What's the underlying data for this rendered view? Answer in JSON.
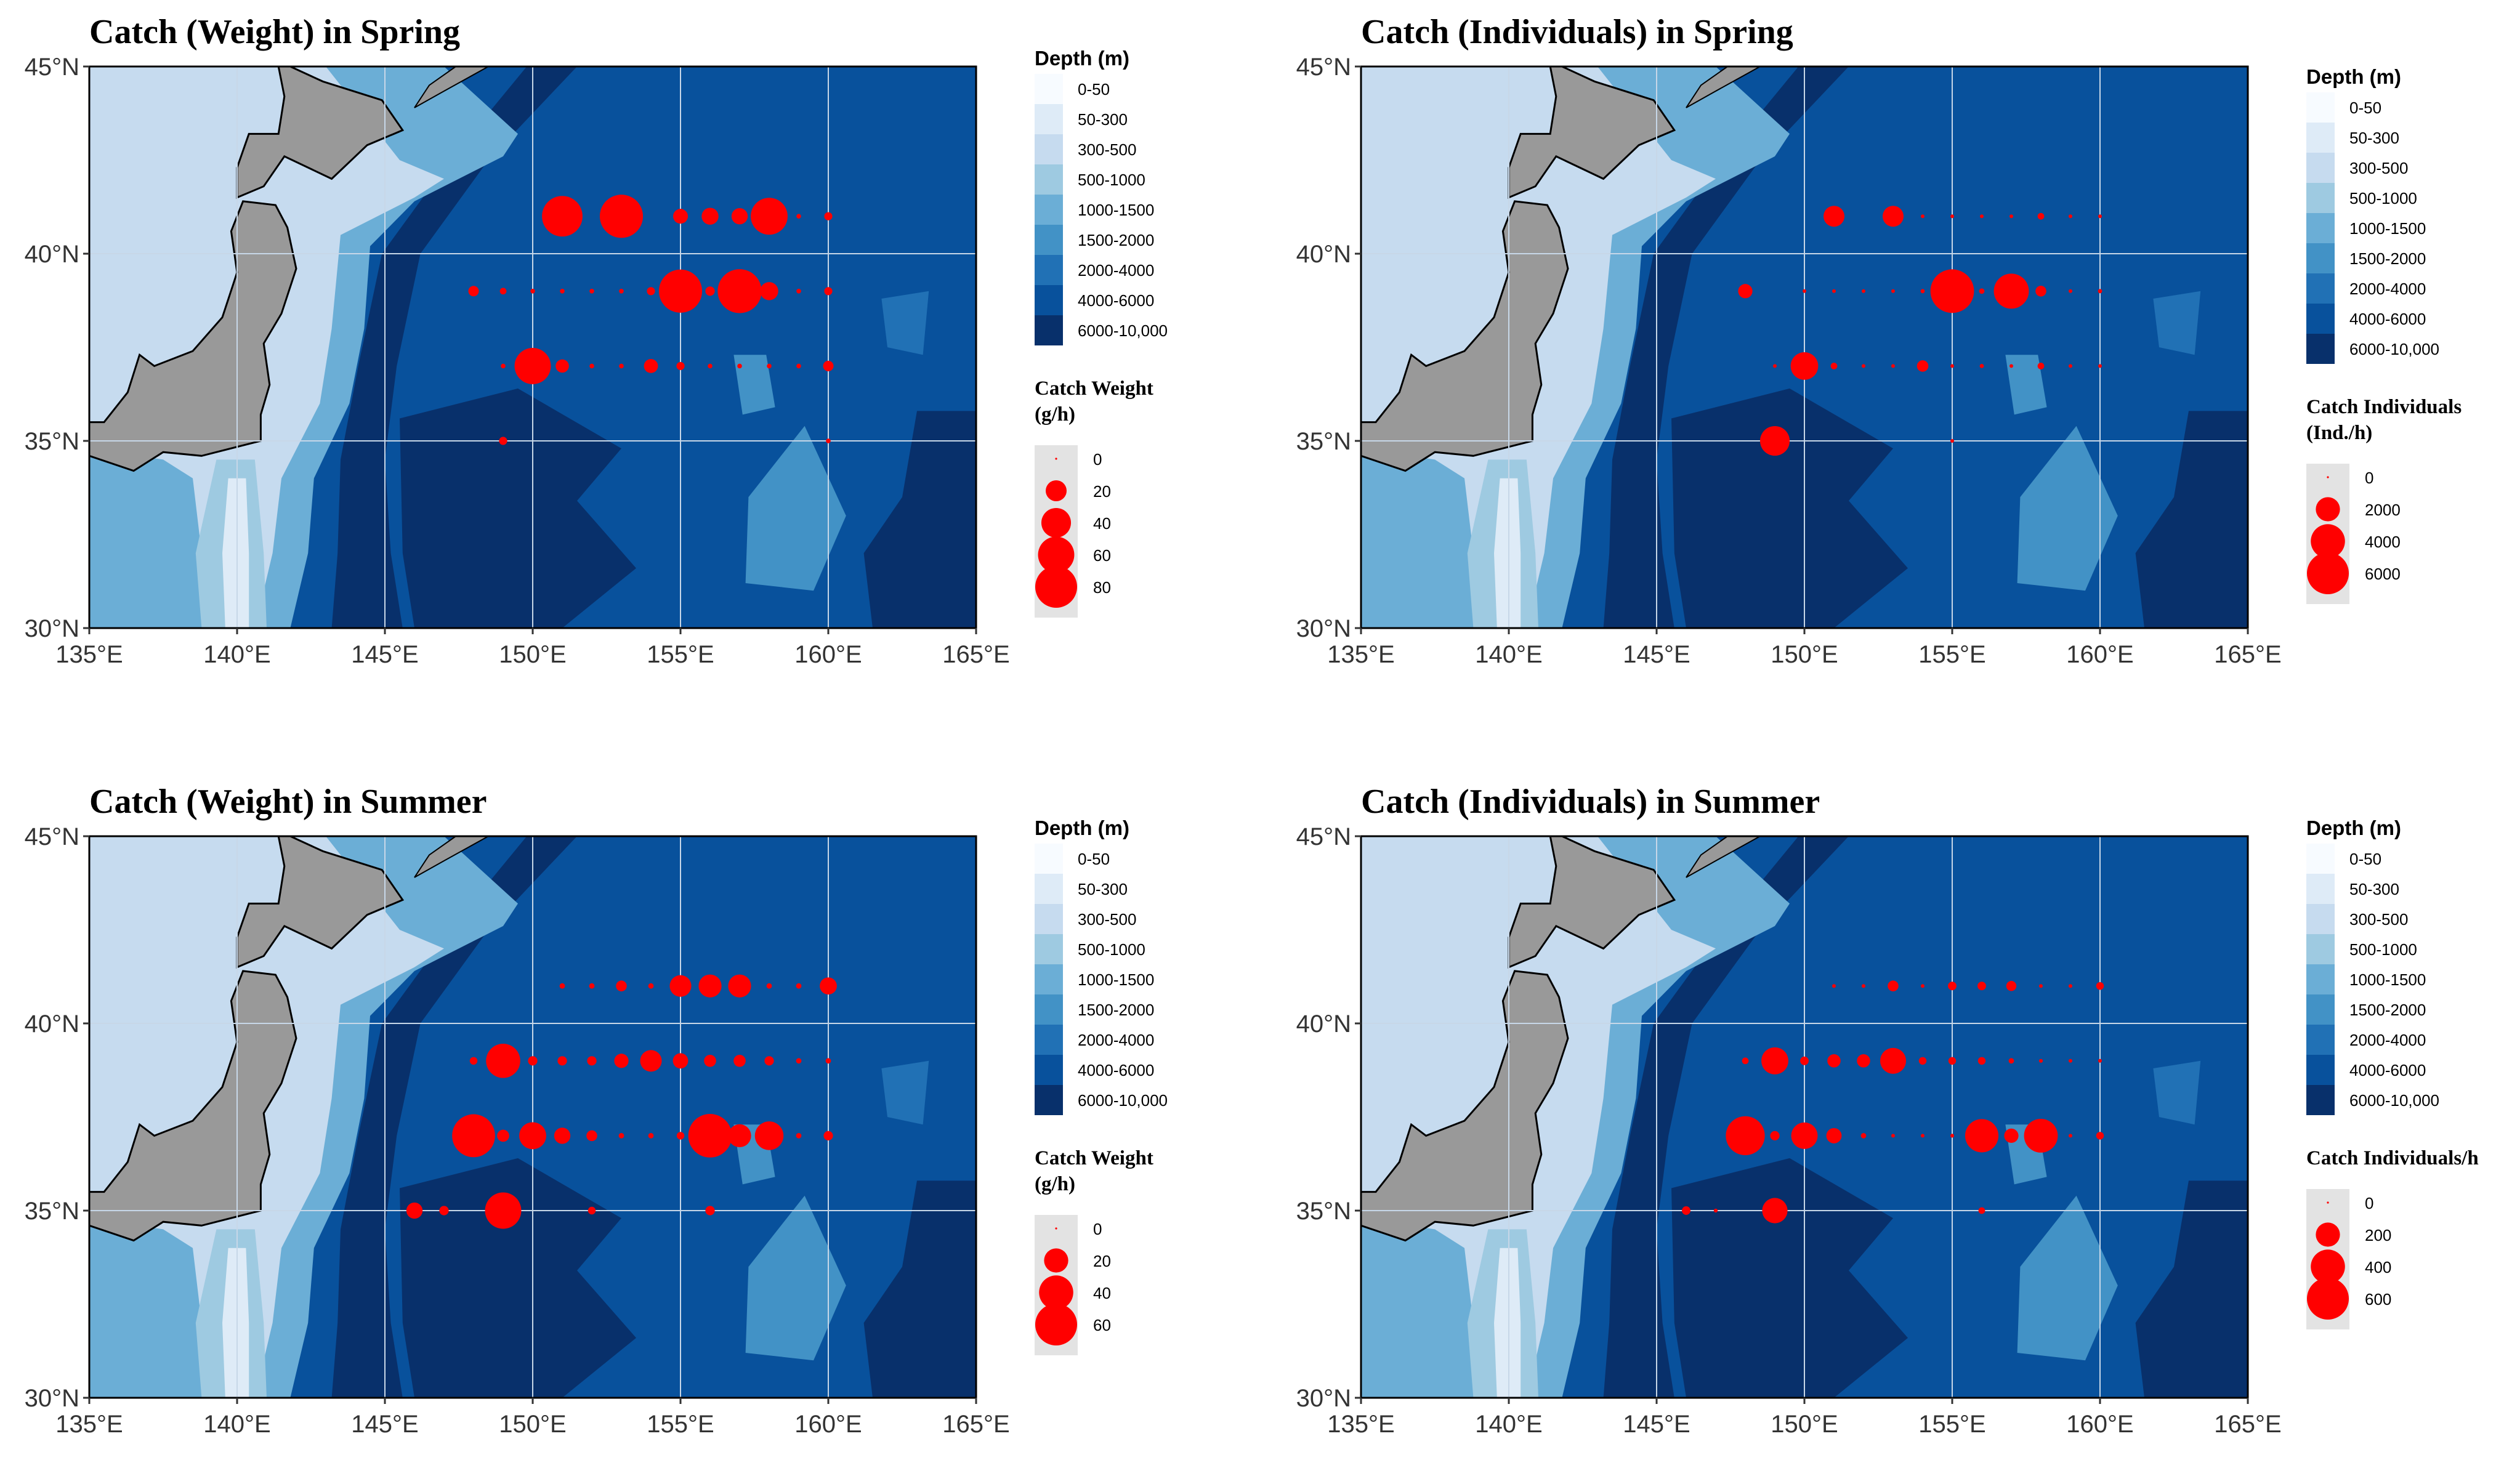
{
  "colors": {
    "depth": [
      "#f7fbff",
      "#deebf7",
      "#c6dbef",
      "#9ecae1",
      "#6baed6",
      "#4292c6",
      "#2171b5",
      "#08519c",
      "#08306b"
    ],
    "land": "#999999",
    "catch_point": "#ff0000",
    "legend_box": "#e3e3e3",
    "grid": "#c7d7e8"
  },
  "axes": {
    "x_ticks": [
      "135°E",
      "140°E",
      "145°E",
      "150°E",
      "155°E",
      "160°E",
      "165°E"
    ],
    "y_ticks": [
      "45°N",
      "40°N",
      "35°N",
      "30°N"
    ],
    "lon_range": [
      135,
      165
    ],
    "lat_range": [
      30,
      45
    ]
  },
  "depth_legend": {
    "title": "Depth (m)",
    "classes": [
      "0-50",
      "50-300",
      "300-500",
      "500-1000",
      "1000-1500",
      "1500-2000",
      "2000-4000",
      "4000-6000",
      "6000-10,000"
    ]
  },
  "panels": [
    {
      "title": "Catch (Weight) in Spring",
      "catch_legend": {
        "title_lines": [
          "Catch Weight",
          "(g/h)"
        ],
        "values": [
          0,
          20,
          40,
          60,
          80
        ],
        "labels": [
          "0",
          "20",
          "40",
          "60",
          "80"
        ]
      },
      "points": [
        {
          "lon": 151,
          "lat": 41,
          "v": 75
        },
        {
          "lon": 153,
          "lat": 41,
          "v": 85
        },
        {
          "lon": 155,
          "lat": 41,
          "v": 10
        },
        {
          "lon": 156,
          "lat": 41,
          "v": 13
        },
        {
          "lon": 157,
          "lat": 41,
          "v": 12
        },
        {
          "lon": 158,
          "lat": 41,
          "v": 62
        },
        {
          "lon": 159,
          "lat": 41,
          "v": 1
        },
        {
          "lon": 160,
          "lat": 41,
          "v": 3
        },
        {
          "lon": 148,
          "lat": 39,
          "v": 5
        },
        {
          "lon": 149,
          "lat": 39,
          "v": 2
        },
        {
          "lon": 150,
          "lat": 39,
          "v": 1
        },
        {
          "lon": 151,
          "lat": 39,
          "v": 1
        },
        {
          "lon": 152,
          "lat": 39,
          "v": 1
        },
        {
          "lon": 153,
          "lat": 39,
          "v": 1
        },
        {
          "lon": 154,
          "lat": 39,
          "v": 3
        },
        {
          "lon": 155,
          "lat": 39,
          "v": 85
        },
        {
          "lon": 156,
          "lat": 39,
          "v": 4
        },
        {
          "lon": 157,
          "lat": 39,
          "v": 88
        },
        {
          "lon": 158,
          "lat": 39,
          "v": 15
        },
        {
          "lon": 159,
          "lat": 39,
          "v": 1
        },
        {
          "lon": 160,
          "lat": 39,
          "v": 3
        },
        {
          "lon": 149,
          "lat": 37,
          "v": 1
        },
        {
          "lon": 150,
          "lat": 37,
          "v": 60
        },
        {
          "lon": 151,
          "lat": 37,
          "v": 8
        },
        {
          "lon": 152,
          "lat": 37,
          "v": 1
        },
        {
          "lon": 153,
          "lat": 37,
          "v": 1
        },
        {
          "lon": 154,
          "lat": 37,
          "v": 9
        },
        {
          "lon": 155,
          "lat": 37,
          "v": 3
        },
        {
          "lon": 156,
          "lat": 37,
          "v": 1
        },
        {
          "lon": 157,
          "lat": 37,
          "v": 1
        },
        {
          "lon": 158,
          "lat": 37,
          "v": 1
        },
        {
          "lon": 159,
          "lat": 37,
          "v": 1
        },
        {
          "lon": 160,
          "lat": 37,
          "v": 5
        },
        {
          "lon": 149,
          "lat": 35,
          "v": 3
        },
        {
          "lon": 160,
          "lat": 35,
          "v": 1
        }
      ]
    },
    {
      "title": "Catch (Individuals) in Spring",
      "catch_legend": {
        "title_lines": [
          "Catch Individuals",
          "(Ind./h)"
        ],
        "values": [
          0,
          2000,
          4000,
          6000
        ],
        "labels": [
          "0",
          "2000",
          "4000",
          "6000"
        ]
      },
      "points": [
        {
          "lon": 151,
          "lat": 41,
          "v": 1500
        },
        {
          "lon": 153,
          "lat": 41,
          "v": 1500
        },
        {
          "lon": 154,
          "lat": 41,
          "v": 30
        },
        {
          "lon": 155,
          "lat": 41,
          "v": 30
        },
        {
          "lon": 156,
          "lat": 41,
          "v": 30
        },
        {
          "lon": 157,
          "lat": 41,
          "v": 30
        },
        {
          "lon": 158,
          "lat": 41,
          "v": 150
        },
        {
          "lon": 159,
          "lat": 41,
          "v": 30
        },
        {
          "lon": 160,
          "lat": 41,
          "v": 30
        },
        {
          "lon": 148,
          "lat": 39,
          "v": 700
        },
        {
          "lon": 150,
          "lat": 39,
          "v": 30
        },
        {
          "lon": 151,
          "lat": 39,
          "v": 30
        },
        {
          "lon": 152,
          "lat": 39,
          "v": 30
        },
        {
          "lon": 153,
          "lat": 39,
          "v": 30
        },
        {
          "lon": 154,
          "lat": 39,
          "v": 60
        },
        {
          "lon": 155,
          "lat": 39,
          "v": 6500
        },
        {
          "lon": 156,
          "lat": 39,
          "v": 100
        },
        {
          "lon": 157,
          "lat": 39,
          "v": 4200
        },
        {
          "lon": 158,
          "lat": 39,
          "v": 400
        },
        {
          "lon": 159,
          "lat": 39,
          "v": 30
        },
        {
          "lon": 160,
          "lat": 39,
          "v": 60
        },
        {
          "lon": 149,
          "lat": 37,
          "v": 30
        },
        {
          "lon": 150,
          "lat": 37,
          "v": 2600
        },
        {
          "lon": 151,
          "lat": 37,
          "v": 150
        },
        {
          "lon": 152,
          "lat": 37,
          "v": 30
        },
        {
          "lon": 153,
          "lat": 37,
          "v": 30
        },
        {
          "lon": 154,
          "lat": 37,
          "v": 450
        },
        {
          "lon": 155,
          "lat": 37,
          "v": 30
        },
        {
          "lon": 156,
          "lat": 37,
          "v": 60
        },
        {
          "lon": 157,
          "lat": 37,
          "v": 30
        },
        {
          "lon": 158,
          "lat": 37,
          "v": 150
        },
        {
          "lon": 159,
          "lat": 37,
          "v": 30
        },
        {
          "lon": 160,
          "lat": 37,
          "v": 30
        },
        {
          "lon": 149,
          "lat": 35,
          "v": 3000
        },
        {
          "lon": 155,
          "lat": 35,
          "v": 30
        }
      ]
    },
    {
      "title": "Catch (Weight) in Summer",
      "catch_legend": {
        "title_lines": [
          "Catch Weight",
          "(g/h)"
        ],
        "values": [
          0,
          20,
          40,
          60
        ],
        "labels": [
          "0",
          "20",
          "40",
          "60"
        ]
      },
      "points": [
        {
          "lon": 151,
          "lat": 41,
          "v": 1
        },
        {
          "lon": 152,
          "lat": 41,
          "v": 1
        },
        {
          "lon": 153,
          "lat": 41,
          "v": 4
        },
        {
          "lon": 154,
          "lat": 41,
          "v": 1
        },
        {
          "lon": 155,
          "lat": 41,
          "v": 16
        },
        {
          "lon": 156,
          "lat": 41,
          "v": 18
        },
        {
          "lon": 157,
          "lat": 41,
          "v": 18
        },
        {
          "lon": 158,
          "lat": 41,
          "v": 1
        },
        {
          "lon": 159,
          "lat": 41,
          "v": 1
        },
        {
          "lon": 160,
          "lat": 41,
          "v": 10
        },
        {
          "lon": 148,
          "lat": 39,
          "v": 2
        },
        {
          "lon": 149,
          "lat": 39,
          "v": 40
        },
        {
          "lon": 150,
          "lat": 39,
          "v": 3
        },
        {
          "lon": 151,
          "lat": 39,
          "v": 3
        },
        {
          "lon": 152,
          "lat": 39,
          "v": 3
        },
        {
          "lon": 153,
          "lat": 39,
          "v": 7
        },
        {
          "lon": 154,
          "lat": 39,
          "v": 16
        },
        {
          "lon": 155,
          "lat": 39,
          "v": 8
        },
        {
          "lon": 156,
          "lat": 39,
          "v": 5
        },
        {
          "lon": 157,
          "lat": 39,
          "v": 5
        },
        {
          "lon": 158,
          "lat": 39,
          "v": 3
        },
        {
          "lon": 159,
          "lat": 39,
          "v": 1
        },
        {
          "lon": 160,
          "lat": 39,
          "v": 1
        },
        {
          "lon": 148,
          "lat": 37,
          "v": 63
        },
        {
          "lon": 149,
          "lat": 37,
          "v": 5
        },
        {
          "lon": 150,
          "lat": 37,
          "v": 25
        },
        {
          "lon": 151,
          "lat": 37,
          "v": 9
        },
        {
          "lon": 152,
          "lat": 37,
          "v": 4
        },
        {
          "lon": 153,
          "lat": 37,
          "v": 1
        },
        {
          "lon": 154,
          "lat": 37,
          "v": 1
        },
        {
          "lon": 155,
          "lat": 37,
          "v": 2
        },
        {
          "lon": 156,
          "lat": 37,
          "v": 65
        },
        {
          "lon": 157,
          "lat": 37,
          "v": 18
        },
        {
          "lon": 158,
          "lat": 37,
          "v": 28
        },
        {
          "lon": 159,
          "lat": 37,
          "v": 1
        },
        {
          "lon": 160,
          "lat": 37,
          "v": 3
        },
        {
          "lon": 146,
          "lat": 35,
          "v": 9
        },
        {
          "lon": 147,
          "lat": 35,
          "v": 3
        },
        {
          "lon": 149,
          "lat": 35,
          "v": 45
        },
        {
          "lon": 152,
          "lat": 35,
          "v": 2
        },
        {
          "lon": 156,
          "lat": 35,
          "v": 3
        }
      ]
    },
    {
      "title": "Catch (Individuals) in Summer",
      "catch_legend": {
        "title_lines": [
          "Catch Individuals/h"
        ],
        "values": [
          0,
          200,
          400,
          600
        ],
        "labels": [
          "0",
          "200",
          "400",
          "600"
        ]
      },
      "points": [
        {
          "lon": 151,
          "lat": 41,
          "v": 2
        },
        {
          "lon": 152,
          "lat": 41,
          "v": 2
        },
        {
          "lon": 153,
          "lat": 41,
          "v": 40
        },
        {
          "lon": 154,
          "lat": 41,
          "v": 2
        },
        {
          "lon": 155,
          "lat": 41,
          "v": 25
        },
        {
          "lon": 156,
          "lat": 41,
          "v": 25
        },
        {
          "lon": 157,
          "lat": 41,
          "v": 35
        },
        {
          "lon": 158,
          "lat": 41,
          "v": 2
        },
        {
          "lon": 159,
          "lat": 41,
          "v": 2
        },
        {
          "lon": 160,
          "lat": 41,
          "v": 20
        },
        {
          "lon": 148,
          "lat": 39,
          "v": 15
        },
        {
          "lon": 149,
          "lat": 39,
          "v": 250
        },
        {
          "lon": 150,
          "lat": 39,
          "v": 25
        },
        {
          "lon": 151,
          "lat": 39,
          "v": 60
        },
        {
          "lon": 152,
          "lat": 39,
          "v": 60
        },
        {
          "lon": 153,
          "lat": 39,
          "v": 230
        },
        {
          "lon": 154,
          "lat": 39,
          "v": 20
        },
        {
          "lon": 155,
          "lat": 39,
          "v": 20
        },
        {
          "lon": 156,
          "lat": 39,
          "v": 20
        },
        {
          "lon": 157,
          "lat": 39,
          "v": 10
        },
        {
          "lon": 158,
          "lat": 39,
          "v": 5
        },
        {
          "lon": 159,
          "lat": 39,
          "v": 2
        },
        {
          "lon": 160,
          "lat": 39,
          "v": 2
        },
        {
          "lon": 148,
          "lat": 37,
          "v": 520
        },
        {
          "lon": 149,
          "lat": 37,
          "v": 30
        },
        {
          "lon": 150,
          "lat": 37,
          "v": 240
        },
        {
          "lon": 151,
          "lat": 37,
          "v": 80
        },
        {
          "lon": 152,
          "lat": 37,
          "v": 10
        },
        {
          "lon": 153,
          "lat": 37,
          "v": 2
        },
        {
          "lon": 154,
          "lat": 37,
          "v": 2
        },
        {
          "lon": 155,
          "lat": 37,
          "v": 5
        },
        {
          "lon": 156,
          "lat": 37,
          "v": 380
        },
        {
          "lon": 157,
          "lat": 37,
          "v": 70
        },
        {
          "lon": 158,
          "lat": 37,
          "v": 390
        },
        {
          "lon": 159,
          "lat": 37,
          "v": 2
        },
        {
          "lon": 160,
          "lat": 37,
          "v": 20
        },
        {
          "lon": 146,
          "lat": 35,
          "v": 25
        },
        {
          "lon": 147,
          "lat": 35,
          "v": 5
        },
        {
          "lon": 149,
          "lat": 35,
          "v": 220
        },
        {
          "lon": 156,
          "lat": 35,
          "v": 15
        }
      ]
    }
  ]
}
